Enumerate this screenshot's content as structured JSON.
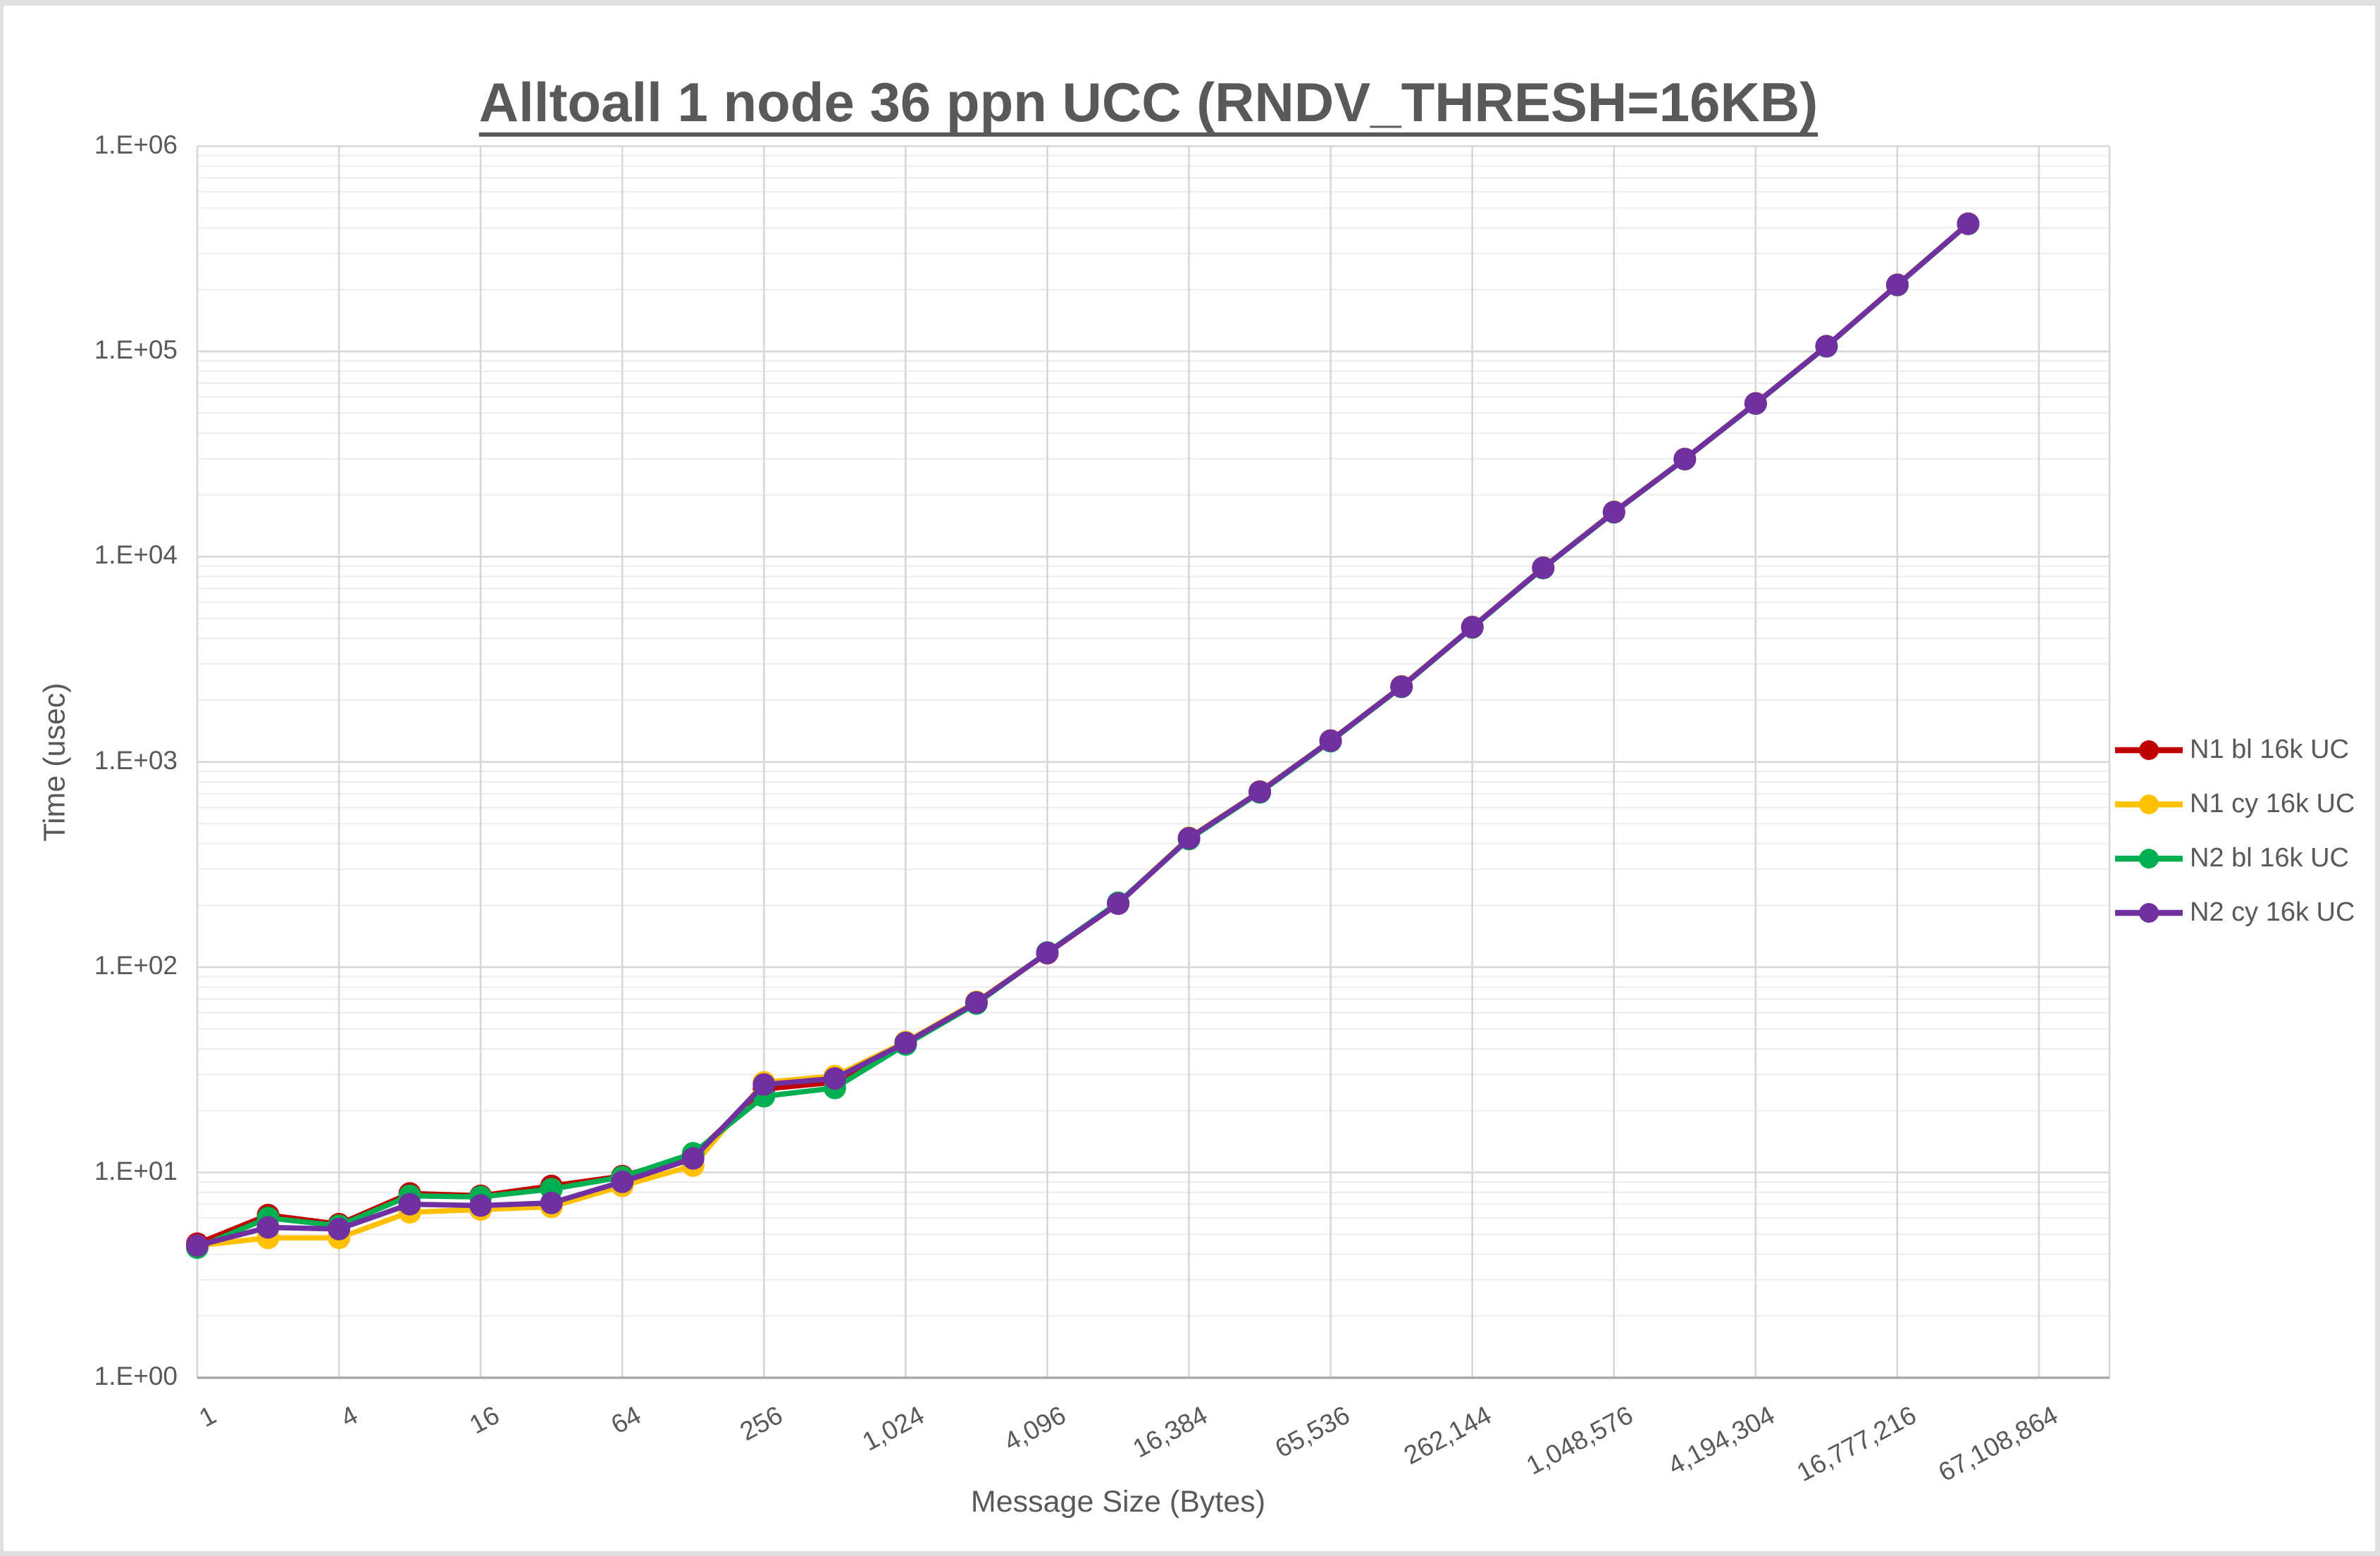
{
  "title": "Alltoall 1 node 36 ppn UCC (RNDV_THRESH=16KB)",
  "colors": {
    "text": "#595959",
    "grid_major": "#d7d7d7",
    "grid_minor": "#ededed",
    "axis_line": "#a8a8a8",
    "series_red": "#C00000",
    "series_yellow": "#FFC000",
    "series_green": "#00B050",
    "series_purple": "#7030A0"
  },
  "chart_data": {
    "type": "line",
    "title": "Alltoall 1 node 36 ppn UCC (RNDV_THRESH=16KB)",
    "xlabel": "Message Size (Bytes)",
    "ylabel": "Time (usec)",
    "x_scale": "log2",
    "y_scale": "log10",
    "ylim": [
      1,
      1000000
    ],
    "grid": "major+minor",
    "legend_position": "right",
    "y_tick_labels": [
      "1.E+00",
      "1.E+01",
      "1.E+02",
      "1.E+03",
      "1.E+04",
      "1.E+05",
      "1.E+06"
    ],
    "x_tick_labels": [
      "1",
      "4",
      "16",
      "64",
      "256",
      "1,024",
      "4,096",
      "16,384",
      "65,536",
      "262,144",
      "1,048,576",
      "4,194,304",
      "16,777,216",
      "67,108,864"
    ],
    "categories": [
      1,
      2,
      4,
      8,
      16,
      32,
      64,
      128,
      256,
      512,
      1024,
      2048,
      4096,
      8192,
      16384,
      32768,
      65536,
      131072,
      262144,
      524288,
      1048576,
      2097152,
      4194304,
      8388608,
      16777216,
      33554432
    ],
    "series": [
      {
        "name": "N1 bl 16k UC",
        "color": "#C00000",
        "values": [
          4.5,
          6.2,
          5.6,
          7.9,
          7.7,
          8.6,
          9.6,
          12.1,
          25.5,
          27.5,
          42.5,
          67.5,
          117,
          204,
          424,
          714,
          1268,
          2328,
          4535,
          8820,
          16480,
          29880,
          55750,
          105900,
          210800,
          418500
        ]
      },
      {
        "name": "N1 cy 16k UC",
        "color": "#FFC000",
        "values": [
          4.4,
          4.8,
          4.8,
          6.4,
          6.6,
          6.8,
          8.6,
          10.8,
          27.5,
          29.5,
          43.2,
          67.8,
          117.5,
          205,
          427,
          718,
          1273,
          2336,
          4550,
          8850,
          16550,
          29950,
          55900,
          106200,
          211300,
          419600
        ]
      },
      {
        "name": "N2 bl 16k UC",
        "color": "#00B050",
        "values": [
          4.3,
          6.0,
          5.5,
          7.7,
          7.6,
          8.3,
          9.5,
          12.4,
          23.5,
          25.8,
          42.0,
          66.5,
          118,
          206,
          421,
          710,
          1262,
          2320,
          4520,
          8800,
          16450,
          29850,
          55700,
          105800,
          210500,
          418000
        ]
      },
      {
        "name": "N2 cy 16k UC",
        "color": "#7030A0",
        "values": [
          4.4,
          5.4,
          5.3,
          7.0,
          6.9,
          7.1,
          9.0,
          11.7,
          26.8,
          28.7,
          42.8,
          67.3,
          117.4,
          204,
          425,
          716,
          1270,
          2330,
          4540,
          8830,
          16500,
          29900,
          55800,
          106000,
          211000,
          419000
        ]
      }
    ]
  }
}
